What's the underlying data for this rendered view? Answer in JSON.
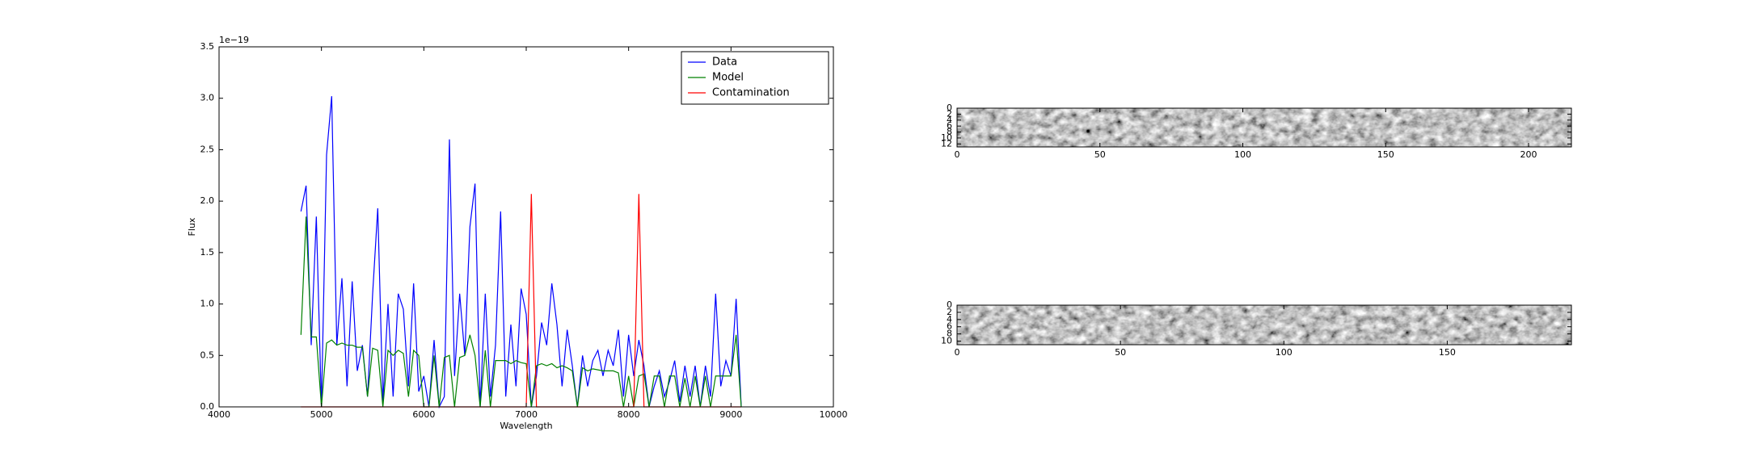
{
  "chart_data": [
    {
      "type": "line",
      "xlabel": "Wavelength",
      "ylabel": "Flux",
      "y_offset_label": "1e−19",
      "x": [
        4800,
        4850,
        4900,
        4950,
        5000,
        5050,
        5100,
        5150,
        5200,
        5250,
        5300,
        5350,
        5400,
        5450,
        5500,
        5550,
        5600,
        5650,
        5700,
        5750,
        5800,
        5850,
        5900,
        5950,
        6000,
        6050,
        6100,
        6150,
        6200,
        6250,
        6300,
        6350,
        6400,
        6450,
        6500,
        6550,
        6600,
        6650,
        6700,
        6750,
        6800,
        6850,
        6900,
        6950,
        7000,
        7050,
        7100,
        7150,
        7200,
        7250,
        7300,
        7350,
        7400,
        7450,
        7500,
        7550,
        7600,
        7650,
        7700,
        7750,
        7800,
        7850,
        7900,
        7950,
        8000,
        8050,
        8100,
        8150,
        8200,
        8250,
        8300,
        8350,
        8400,
        8450,
        8500,
        8550,
        8600,
        8650,
        8700,
        8750,
        8800,
        8850,
        8900,
        8950,
        9000,
        9050,
        9100
      ],
      "series": [
        {
          "name": "Data",
          "color": "#0000ff",
          "values": [
            1.9,
            2.15,
            0.6,
            1.85,
            0,
            2.45,
            3.02,
            0.6,
            1.25,
            0.2,
            1.22,
            0.35,
            0.6,
            0.1,
            1.1,
            1.93,
            0.05,
            1.0,
            0.1,
            1.1,
            0.95,
            0.2,
            1.2,
            0.15,
            0.3,
            0,
            0.65,
            0,
            0.1,
            2.6,
            0.3,
            1.1,
            0.5,
            1.75,
            2.17,
            0,
            1.1,
            0.1,
            0.6,
            1.9,
            0.1,
            0.8,
            0.2,
            1.15,
            0.9,
            0,
            0.3,
            0.82,
            0.6,
            1.2,
            0.8,
            0.2,
            0.75,
            0.4,
            0,
            0.5,
            0.2,
            0.45,
            0.55,
            0.3,
            0.55,
            0.4,
            0.75,
            0.1,
            0.7,
            0.3,
            0.65,
            0.4,
            0,
            0.2,
            0.35,
            0.1,
            0.25,
            0.45,
            0.05,
            0.4,
            0.1,
            0.4,
            0,
            0.4,
            0.1,
            1.1,
            0.2,
            0.45,
            0.3,
            1.05,
            0
          ]
        },
        {
          "name": "Model",
          "color": "#008000",
          "values": [
            0.7,
            1.85,
            0.68,
            0.68,
            0,
            0.62,
            0.65,
            0.6,
            0.62,
            0.6,
            0.6,
            0.58,
            0.58,
            0.1,
            0.57,
            0.55,
            0,
            0.55,
            0.5,
            0.55,
            0.52,
            0.1,
            0.55,
            0.5,
            0,
            0,
            0.5,
            0,
            0.48,
            0.5,
            0,
            0.48,
            0.5,
            0.7,
            0.5,
            0,
            0.55,
            0,
            0.45,
            0.45,
            0.45,
            0.42,
            0.45,
            0.43,
            0.42,
            0,
            0.4,
            0.42,
            0.4,
            0.42,
            0.38,
            0.4,
            0.38,
            0.35,
            0,
            0.38,
            0.35,
            0.37,
            0.36,
            0.35,
            0.35,
            0.35,
            0.33,
            0,
            0.3,
            0,
            0.3,
            0.32,
            0,
            0.3,
            0.3,
            0,
            0.3,
            0.3,
            0,
            0.28,
            0,
            0.3,
            0,
            0.3,
            0,
            0.3,
            0.3,
            0.3,
            0.3,
            0.7,
            0
          ]
        },
        {
          "name": "Contamination",
          "color": "#ff0000",
          "values": [
            0,
            0,
            0,
            0,
            0,
            0,
            0,
            0,
            0,
            0,
            0,
            0,
            0,
            0,
            0,
            0,
            0,
            0,
            0,
            0,
            0,
            0,
            0,
            0,
            0,
            0,
            0,
            0,
            0,
            0,
            0,
            0,
            0,
            0,
            0,
            0,
            0,
            0,
            0,
            0,
            0,
            0,
            0,
            0,
            0,
            2.07,
            0,
            0,
            0,
            0,
            0,
            0,
            0,
            0,
            0,
            0,
            0,
            0,
            0,
            0,
            0,
            0,
            0,
            0,
            0,
            0,
            2.07,
            0,
            0,
            0,
            0,
            0,
            0,
            0,
            0,
            0,
            0,
            0,
            0,
            0,
            0,
            0,
            0,
            0,
            0,
            0,
            0
          ]
        }
      ],
      "xlim": [
        4000,
        10000
      ],
      "xticks": [
        4000,
        5000,
        6000,
        7000,
        8000,
        9000,
        10000
      ],
      "ylim": [
        0,
        3.5
      ],
      "yticks": [
        {
          "value": 0,
          "label": "0.0"
        },
        0.5,
        {
          "value": 1,
          "label": "1.0"
        },
        1.5,
        {
          "value": 2,
          "label": "2.0"
        },
        2.5,
        {
          "value": 3,
          "label": "3.0"
        },
        3.5
      ],
      "legend": "upper right"
    },
    {
      "type": "image",
      "xlim": [
        0,
        215
      ],
      "xticks": [
        0,
        50,
        100,
        150,
        200
      ],
      "ylim": [
        0,
        13
      ],
      "yticks": [
        0,
        2,
        4,
        6,
        8,
        10,
        12
      ],
      "y_inverted": true,
      "cmap": "gray"
    },
    {
      "type": "image",
      "xlim": [
        0,
        188
      ],
      "xticks": [
        0,
        50,
        100,
        150
      ],
      "ylim": [
        0,
        11
      ],
      "yticks": [
        0,
        2,
        4,
        6,
        8,
        10
      ],
      "y_inverted": true,
      "cmap": "gray"
    }
  ]
}
